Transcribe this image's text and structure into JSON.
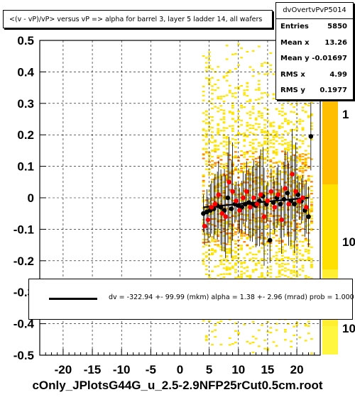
{
  "title": "<(v - vP)/vP> versus   vP => alpha for barrel 3, layer 5 ladder 14, all wafers",
  "stats": {
    "name": "dvOvertvPvP5014",
    "rows": [
      {
        "label": "Entries",
        "value": "5850"
      },
      {
        "label": "Mean x",
        "value": "13.26"
      },
      {
        "label": "Mean y",
        "value": "-0.01697"
      },
      {
        "label": "RMS x",
        "value": "4.99"
      },
      {
        "label": "RMS y",
        "value": "0.1977"
      }
    ]
  },
  "fit": {
    "text": "dv = -322.94 +- 99.99 (mkm) alpha =    1.38 +-  2.96 (mrad) prob = 1.000"
  },
  "footer": "cOnly_JPlotsG44G_u_2.5-2.9NFP25rCut0.5cm.root",
  "colors": {
    "heat_low": "#ffe400",
    "heat_mid": "#ffb000",
    "heat_high": "#ff7a00",
    "profile_black": "#000000",
    "profile_red": "#ff0000",
    "fit_line": "#000000"
  },
  "chart_data": {
    "type": "scatter",
    "title": "<(v - vP)/vP> versus   vP => alpha for barrel 3, layer 5 ladder 14, all wafers",
    "xlabel": "",
    "ylabel": "",
    "xlim": [
      -24,
      24
    ],
    "ylim": [
      -0.5,
      0.5
    ],
    "x_ticks": [
      -20,
      -15,
      -10,
      -5,
      0,
      5,
      10,
      15,
      20
    ],
    "y_ticks": [
      -0.5,
      -0.4,
      -0.3,
      -0.2,
      -0.1,
      0,
      0.1,
      0.2,
      0.3,
      0.4,
      0.5
    ],
    "x_tick_labels": [
      "-20",
      "-15",
      "-10",
      "-5",
      "0",
      "5",
      "10",
      "15",
      "20"
    ],
    "y_tick_labels": [
      "-0.5",
      "-0.4",
      "-0.3",
      "-0.2",
      "-0.1",
      "0",
      "0.1",
      "0.2",
      "0.3",
      "0.4",
      "0.5"
    ],
    "grid": true,
    "colorbar_labels": [
      "1",
      "10",
      "10"
    ],
    "fit_line": {
      "x": [
        4,
        22
      ],
      "y": [
        -0.03,
        0.0
      ]
    },
    "series": [
      {
        "marker": "black",
        "x": [
          4.0,
          4.6,
          5.2,
          5.8,
          6.4,
          7.0,
          7.6,
          8.2,
          8.8,
          9.4,
          10.0,
          10.6,
          11.2,
          11.8,
          12.4,
          13.0,
          13.6,
          14.2,
          14.8,
          15.4,
          16.0,
          16.6,
          17.2,
          17.8,
          18.4,
          19.0,
          19.6,
          20.2,
          20.8,
          21.4,
          22.0,
          22.4
        ],
        "y": [
          -0.05,
          -0.045,
          -0.04,
          -0.035,
          -0.025,
          -0.03,
          -0.04,
          0.0,
          -0.035,
          -0.02,
          -0.025,
          -0.03,
          -0.02,
          -0.015,
          -0.02,
          -0.025,
          -0.01,
          0.005,
          -0.02,
          -0.135,
          -0.015,
          0.0,
          -0.02,
          -0.005,
          0.015,
          -0.01,
          -0.02,
          0.01,
          -0.01,
          -0.04,
          -0.06,
          0.195
        ]
      },
      {
        "marker": "red",
        "x": [
          4.2,
          4.8,
          5.4,
          6.0,
          6.6,
          7.2,
          7.8,
          8.4,
          9.0,
          9.6,
          10.2,
          10.8,
          11.4,
          12.0,
          12.6,
          13.2,
          13.8,
          14.4,
          15.0,
          15.6,
          16.2,
          16.8,
          17.4,
          18.0,
          18.6,
          19.2,
          19.8,
          20.4,
          21.0,
          21.6
        ],
        "y": [
          -0.09,
          -0.07,
          -0.03,
          -0.02,
          0.01,
          -0.05,
          -0.06,
          0.05,
          0.02,
          -0.01,
          -0.04,
          0.0,
          0.02,
          -0.03,
          0.0,
          -0.02,
          0.01,
          -0.06,
          -0.01,
          0.02,
          -0.03,
          0.01,
          -0.07,
          0.03,
          -0.02,
          0.075,
          0.02,
          -0.01,
          0.0,
          -0.03
        ]
      }
    ]
  }
}
